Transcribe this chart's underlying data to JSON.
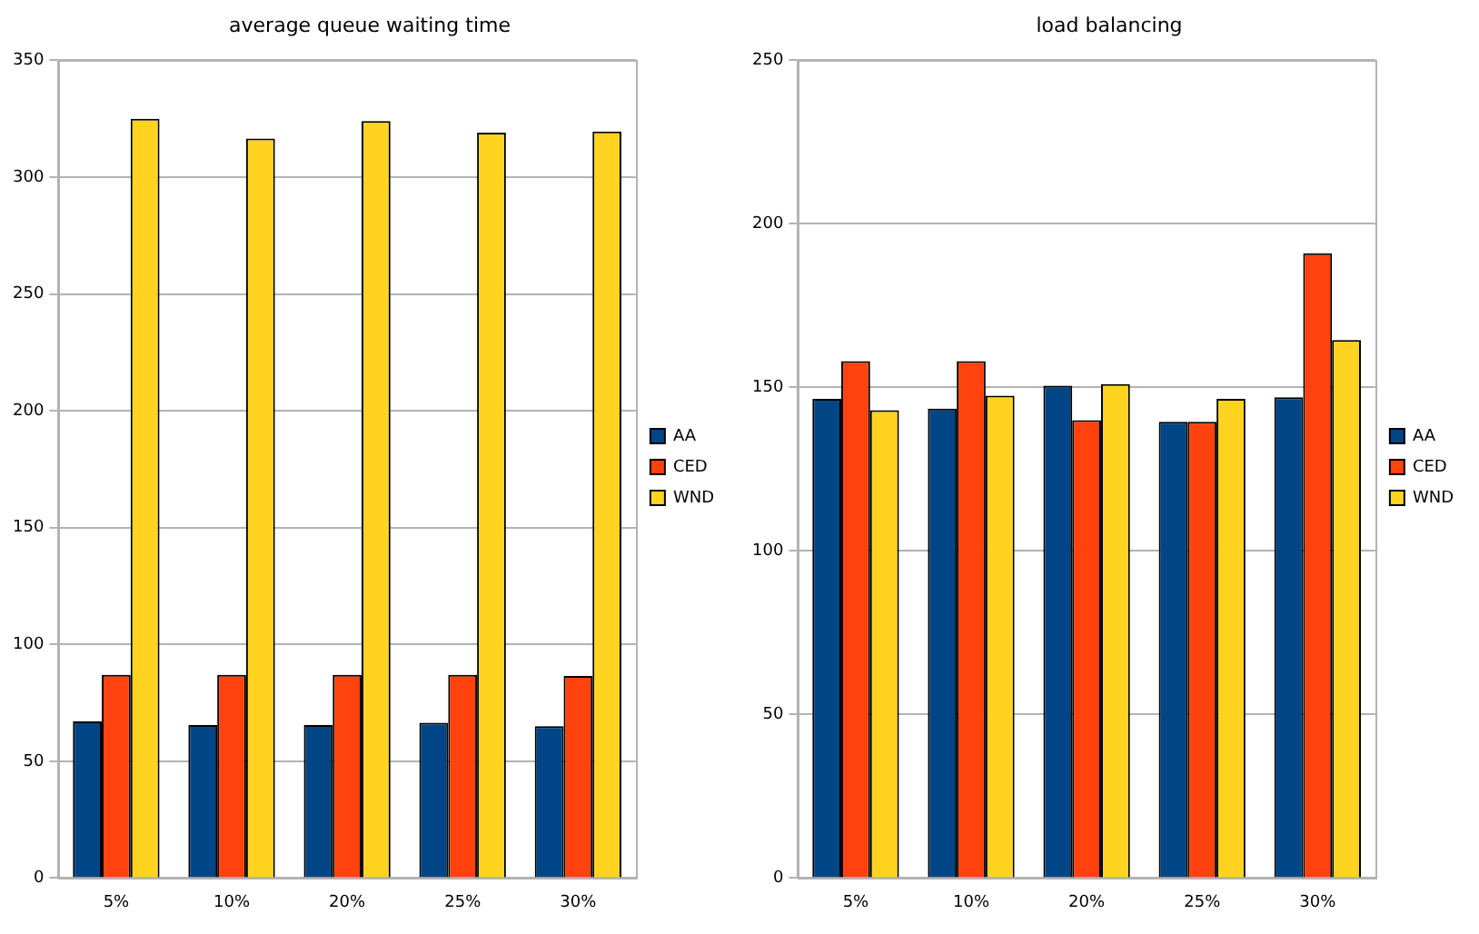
{
  "chart_data": [
    {
      "type": "bar",
      "title": "average queue waiting time",
      "categories": [
        "5%",
        "10%",
        "20%",
        "25%",
        "30%"
      ],
      "series": [
        {
          "name": "AA",
          "color": "#004586",
          "values": [
            67,
            65.5,
            65.5,
            66.5,
            65
          ]
        },
        {
          "name": "CED",
          "color": "#ff420e",
          "values": [
            87,
            87,
            87,
            87,
            86.5
          ]
        },
        {
          "name": "WND",
          "color": "#ffd320",
          "values": [
            325,
            316.5,
            324,
            319,
            319.5
          ]
        }
      ],
      "ylim": [
        0,
        350
      ],
      "yticks": [
        0,
        50,
        100,
        150,
        200,
        250,
        300,
        350
      ],
      "grid": "y",
      "legend": "right"
    },
    {
      "type": "bar",
      "title": "load balancing",
      "categories": [
        "5%",
        "10%",
        "20%",
        "25%",
        "30%"
      ],
      "series": [
        {
          "name": "AA",
          "color": "#004586",
          "values": [
            146.5,
            143.5,
            150.5,
            139.5,
            147
          ]
        },
        {
          "name": "CED",
          "color": "#ff420e",
          "values": [
            158,
            158,
            140,
            139.5,
            191
          ]
        },
        {
          "name": "WND",
          "color": "#ffd320",
          "values": [
            143,
            147.5,
            151,
            146.5,
            164.5
          ]
        }
      ],
      "ylim": [
        0,
        250
      ],
      "yticks": [
        0,
        50,
        100,
        150,
        200,
        250
      ],
      "grid": "y",
      "legend": "right"
    }
  ]
}
